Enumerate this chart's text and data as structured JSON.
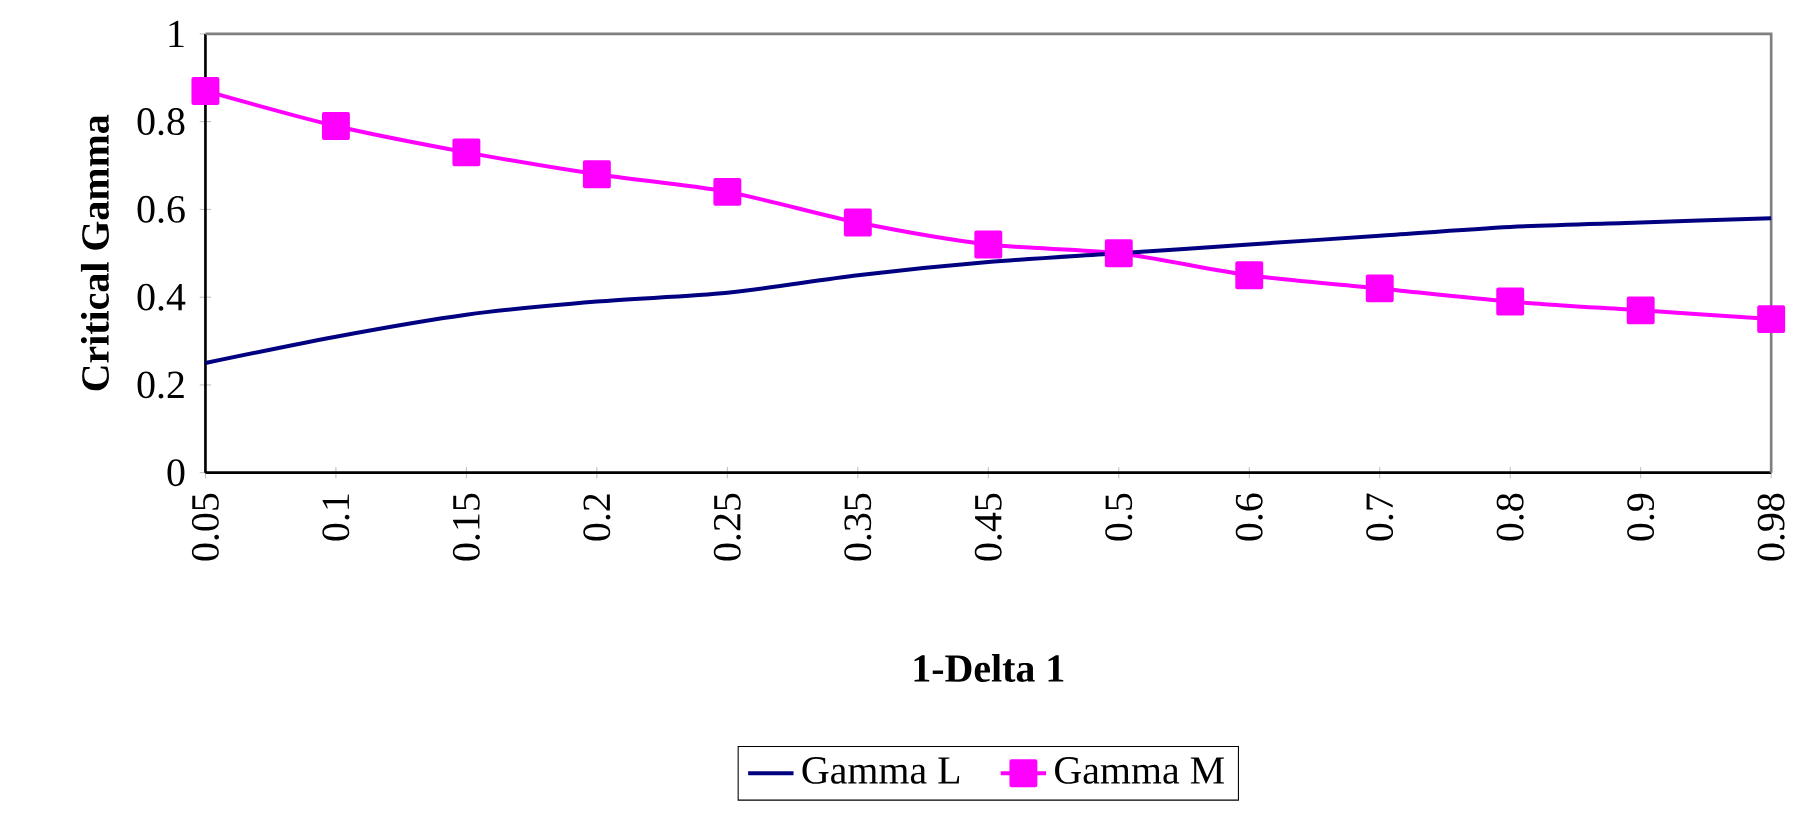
{
  "chart_data": {
    "type": "line",
    "xlabel": "1-Delta 1",
    "ylabel": "Critical Gamma",
    "categories": [
      "0.05",
      "0.1",
      "0.15",
      "0.2",
      "0.25",
      "0.35",
      "0.45",
      "0.5",
      "0.6",
      "0.7",
      "0.8",
      "0.9",
      "0.98"
    ],
    "series": [
      {
        "name": "Gamma L",
        "color": "#000080",
        "marker": "none",
        "values": [
          0.25,
          0.31,
          0.36,
          0.39,
          0.41,
          0.45,
          0.48,
          0.5,
          0.52,
          0.54,
          0.56,
          0.57,
          0.58
        ]
      },
      {
        "name": "Gamma M",
        "color": "#ff00ff",
        "marker": "square",
        "values": [
          0.87,
          0.79,
          0.73,
          0.68,
          0.64,
          0.57,
          0.52,
          0.5,
          0.45,
          0.42,
          0.39,
          0.37,
          0.35
        ]
      }
    ],
    "ylim": [
      0,
      1
    ],
    "yticks": [
      0,
      0.2,
      0.4,
      0.6,
      0.8,
      1
    ],
    "grid": false,
    "legend": "bottom",
    "line_style": "solid"
  }
}
